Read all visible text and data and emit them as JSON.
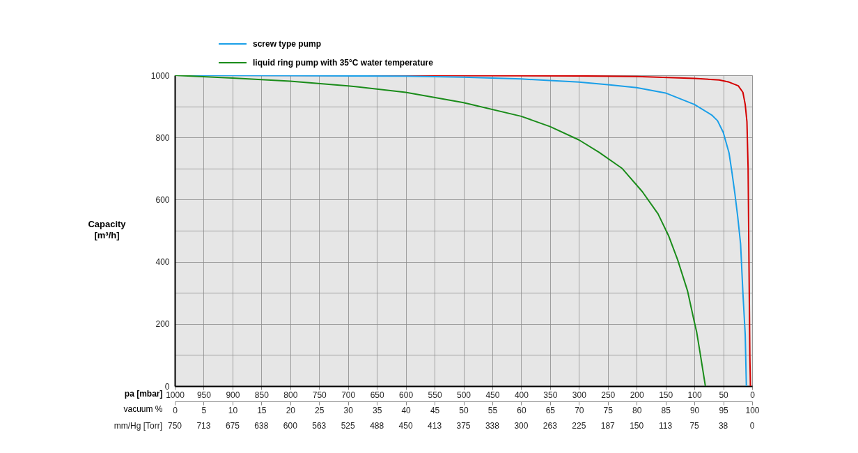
{
  "chart_data": {
    "type": "line",
    "ylabel": "Capacity [m³/h]",
    "xlabel": "pa [mbar]",
    "x2label": "vacuum %",
    "annotations": [
      "mm/Hg [Torr]",
      "750",
      "713",
      "675",
      "638",
      "600",
      "563",
      "525",
      "488",
      "450",
      "413",
      "375",
      "338",
      "300",
      "263",
      "225",
      "187",
      "150",
      "113",
      "75",
      "38",
      "0"
    ],
    "xlim": [
      1000,
      0
    ],
    "xticks": [
      1000,
      950,
      900,
      850,
      800,
      750,
      700,
      650,
      600,
      550,
      500,
      450,
      400,
      350,
      300,
      250,
      200,
      150,
      100,
      50,
      0
    ],
    "x2lim": [
      0,
      100
    ],
    "x2ticks": [
      0,
      5,
      10,
      15,
      20,
      25,
      30,
      35,
      40,
      45,
      50,
      55,
      60,
      65,
      70,
      75,
      80,
      85,
      90,
      95,
      100
    ],
    "ylim": [
      0,
      1000
    ],
    "yticks": [
      0,
      {
        "value": 100,
        "label": null
      },
      200,
      {
        "value": 300,
        "label": null
      },
      400,
      {
        "value": 500,
        "label": null
      },
      600,
      {
        "value": 700,
        "label": null
      },
      800,
      {
        "value": 900,
        "label": null
      },
      1000
    ],
    "grid": true,
    "legend": "top",
    "series": [
      {
        "color": "#d40000",
        "x": [
          1000,
          500,
          300,
          200,
          100,
          57,
          40,
          24,
          16,
          12,
          9,
          7,
          6,
          5,
          4,
          3
        ],
        "values": [
          1000,
          999,
          998,
          996,
          990,
          985,
          978,
          966,
          945,
          906,
          850,
          700,
          500,
          300,
          100,
          0
        ]
      },
      {
        "name": "screw type pump",
        "color": "#1a9fe8",
        "x": [
          1000,
          800,
          600,
          500,
          400,
          300,
          250,
          200,
          150,
          100,
          70,
          60,
          50,
          40,
          35,
          30,
          25,
          20,
          16,
          12,
          10
        ],
        "values": [
          1000,
          999,
          997,
          994,
          988,
          978,
          970,
          960,
          943,
          906,
          872,
          854,
          816,
          750,
          688,
          621,
          545,
          457,
          300,
          166,
          0
        ]
      },
      {
        "name": "liquid ring pump with 35°C water temperature",
        "color": "#1a8c1a",
        "x": [
          1000,
          900,
          800,
          700,
          600,
          500,
          400,
          350,
          300,
          265,
          225,
          190,
          163,
          145,
          129,
          112,
          100,
          96,
          90,
          81
        ],
        "values": [
          1000,
          991,
          981,
          966,
          945,
          912,
          868,
          835,
          792,
          752,
          700,
          625,
          554,
          485,
          406,
          307,
          205,
          173,
          105,
          0
        ]
      }
    ]
  }
}
